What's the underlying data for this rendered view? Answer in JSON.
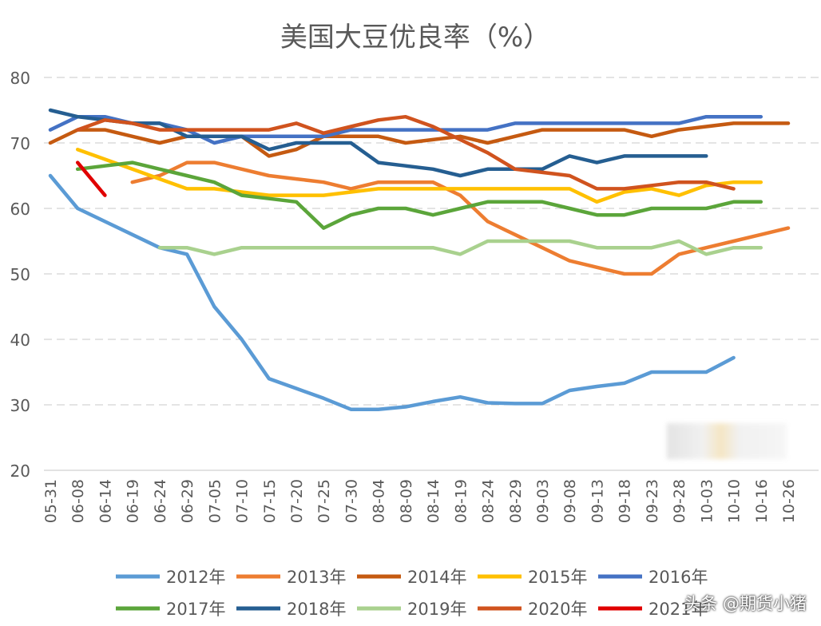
{
  "chart_data": {
    "type": "line",
    "title": "美国大豆优良率（%）",
    "ylim": [
      20,
      80
    ],
    "yticks": [
      20,
      30,
      40,
      50,
      60,
      70,
      80
    ],
    "grid": true,
    "legend_position": "bottom",
    "categories": [
      "05-31",
      "06-08",
      "06-14",
      "06-19",
      "06-24",
      "06-29",
      "07-05",
      "07-10",
      "07-15",
      "07-20",
      "07-25",
      "07-30",
      "08-04",
      "08-09",
      "08-14",
      "08-19",
      "08-24",
      "08-29",
      "09-03",
      "09-08",
      "09-13",
      "09-18",
      "09-23",
      "09-28",
      "10-03",
      "10-10",
      "10-16",
      "10-26"
    ],
    "series": [
      {
        "name": "2012年",
        "color": "#5B9BD5",
        "values": [
          65,
          60,
          58,
          56,
          54,
          53,
          45,
          40,
          34,
          32.5,
          31,
          29.3,
          29.3,
          29.7,
          30.5,
          31.2,
          30.3,
          30.2,
          30.2,
          32.2,
          32.8,
          33.3,
          35,
          35,
          35,
          37.2,
          null,
          null
        ]
      },
      {
        "name": "2013年",
        "color": "#ED7D31",
        "values": [
          null,
          null,
          null,
          64,
          65,
          67,
          67,
          66,
          65,
          64.5,
          64,
          63,
          64,
          64,
          64,
          62,
          58,
          56,
          54,
          52,
          51,
          50,
          50,
          53,
          54,
          55,
          56,
          57
        ]
      },
      {
        "name": "2014年",
        "color": "#C55A11",
        "values": [
          70,
          72,
          72,
          71,
          70,
          71,
          71,
          71,
          68,
          69,
          71,
          71,
          71,
          70,
          70.5,
          71,
          70,
          71,
          72,
          72,
          72,
          72,
          71,
          72,
          72.5,
          73,
          73,
          73
        ]
      },
      {
        "name": "2015年",
        "color": "#FFC000",
        "values": [
          null,
          69,
          67.5,
          66,
          64.5,
          63,
          63,
          62.5,
          62,
          62,
          62,
          62.5,
          63,
          63,
          63,
          63,
          63,
          63,
          63,
          63,
          61,
          62.5,
          63,
          62,
          63.5,
          64,
          64,
          null
        ]
      },
      {
        "name": "2016年",
        "color": "#4472C4",
        "values": [
          72,
          74,
          74,
          73,
          73,
          72,
          70,
          71,
          71,
          71,
          71,
          72,
          72,
          72,
          72,
          72,
          72,
          73,
          73,
          73,
          73,
          73,
          73,
          73,
          74,
          74,
          74,
          null
        ]
      },
      {
        "name": "2017年",
        "color": "#5BA53A",
        "values": [
          null,
          66,
          66.5,
          67,
          66,
          65,
          64,
          62,
          61.5,
          61,
          57,
          59,
          60,
          60,
          59,
          60,
          61,
          61,
          61,
          60,
          59,
          59,
          60,
          60,
          60,
          61,
          61,
          null
        ]
      },
      {
        "name": "2018年",
        "color": "#255E91",
        "values": [
          75,
          74,
          73.5,
          73,
          73,
          71,
          71,
          71,
          69,
          70,
          70,
          70,
          67,
          66.5,
          66,
          65,
          66,
          66,
          66,
          68,
          67,
          68,
          68,
          68,
          68,
          null,
          null,
          null
        ]
      },
      {
        "name": "2019年",
        "color": "#A9D18E",
        "values": [
          null,
          null,
          null,
          null,
          54,
          54,
          53,
          54,
          54,
          54,
          54,
          54,
          54,
          54,
          54,
          53,
          55,
          55,
          55,
          55,
          54,
          54,
          54,
          55,
          53,
          54,
          54,
          null
        ]
      },
      {
        "name": "2020年",
        "color": "#D0531E",
        "values": [
          null,
          72,
          73.5,
          73,
          72,
          72,
          72,
          72,
          72,
          73,
          71.5,
          72.5,
          73.5,
          74,
          72.5,
          70.5,
          68.5,
          66,
          65.5,
          65,
          63,
          63,
          63.5,
          64,
          64,
          63,
          null,
          null
        ]
      },
      {
        "name": "2021年",
        "color": "#E00000",
        "values": [
          null,
          67,
          62,
          null,
          null,
          null,
          null,
          null,
          null,
          null,
          null,
          null,
          null,
          null,
          null,
          null,
          null,
          null,
          null,
          null,
          null,
          null,
          null,
          null,
          null,
          null,
          null,
          null
        ]
      }
    ]
  },
  "watermark": "头条 @期货小猪"
}
